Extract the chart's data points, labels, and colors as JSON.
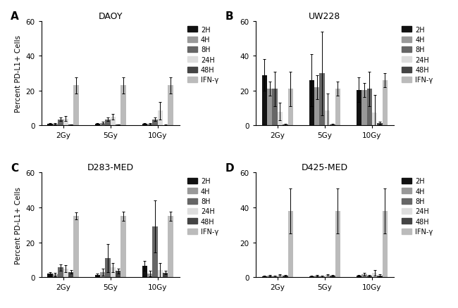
{
  "panels": [
    {
      "label": "A",
      "title": "DAOY",
      "groups": [
        "2Gy",
        "5Gy",
        "10Gy"
      ],
      "values": {
        "2H": [
          1.0,
          1.0,
          1.0
        ],
        "4H": [
          1.0,
          1.5,
          1.0
        ],
        "8H": [
          3.5,
          3.5,
          3.5
        ],
        "24H": [
          4.0,
          5.0,
          8.5
        ],
        "48H": [
          0.4,
          0.4,
          0.3
        ],
        "IFN-g": [
          23.0,
          23.0,
          23.0
        ]
      },
      "errors": {
        "2H": [
          0.5,
          0.5,
          0.5
        ],
        "4H": [
          0.5,
          0.5,
          0.5
        ],
        "8H": [
          1.0,
          1.0,
          1.0
        ],
        "24H": [
          1.5,
          1.5,
          5.0
        ],
        "48H": [
          0.2,
          0.2,
          0.2
        ],
        "IFN-g": [
          4.5,
          4.5,
          4.5
        ]
      },
      "ylim": [
        0,
        60
      ]
    },
    {
      "label": "B",
      "title": "UW228",
      "groups": [
        "2Gy",
        "5Gy",
        "10Gy"
      ],
      "values": {
        "2H": [
          29.0,
          26.0,
          20.5
        ],
        "4H": [
          21.0,
          22.0,
          20.5
        ],
        "8H": [
          21.0,
          30.0,
          21.0
        ],
        "24H": [
          8.0,
          8.5,
          7.5
        ],
        "48H": [
          0.5,
          0.5,
          1.5
        ],
        "IFN-g": [
          21.0,
          21.0,
          26.0
        ]
      },
      "errors": {
        "2H": [
          9.0,
          15.0,
          7.0
        ],
        "4H": [
          4.0,
          7.0,
          4.0
        ],
        "8H": [
          10.0,
          24.0,
          10.0
        ],
        "24H": [
          5.0,
          10.0,
          10.0
        ],
        "48H": [
          0.3,
          0.3,
          0.8
        ],
        "IFN-g": [
          10.0,
          4.0,
          4.0
        ]
      },
      "ylim": [
        0,
        60
      ]
    },
    {
      "label": "C",
      "title": "D283-MED",
      "groups": [
        "2Gy",
        "5Gy",
        "10Gy"
      ],
      "values": {
        "2H": [
          2.0,
          1.2,
          6.5
        ],
        "4H": [
          1.5,
          3.0,
          2.0
        ],
        "8H": [
          5.5,
          11.0,
          29.0
        ],
        "24H": [
          5.0,
          5.5,
          4.0
        ],
        "48H": [
          3.0,
          3.5,
          2.5
        ],
        "IFN-g": [
          35.0,
          35.0,
          35.0
        ]
      },
      "errors": {
        "2H": [
          1.0,
          0.8,
          3.0
        ],
        "4H": [
          1.0,
          2.0,
          1.5
        ],
        "8H": [
          2.0,
          8.0,
          15.0
        ],
        "24H": [
          2.0,
          2.5,
          4.0
        ],
        "48H": [
          1.0,
          1.5,
          1.0
        ],
        "IFN-g": [
          2.0,
          2.5,
          2.5
        ]
      },
      "ylim": [
        0,
        60
      ]
    },
    {
      "label": "D",
      "title": "D425-MED",
      "groups": [
        "2Gy",
        "5Gy",
        "10Gy"
      ],
      "values": {
        "2H": [
          0.5,
          0.5,
          0.8
        ],
        "4H": [
          0.8,
          0.8,
          1.5
        ],
        "8H": [
          0.5,
          0.5,
          0.8
        ],
        "24H": [
          1.2,
          1.2,
          2.5
        ],
        "48H": [
          0.8,
          0.8,
          1.0
        ],
        "IFN-g": [
          38.0,
          38.0,
          38.0
        ]
      },
      "errors": {
        "2H": [
          0.3,
          0.3,
          0.5
        ],
        "4H": [
          0.4,
          0.4,
          0.8
        ],
        "8H": [
          0.3,
          0.3,
          0.5
        ],
        "24H": [
          0.5,
          0.5,
          1.5
        ],
        "48H": [
          0.4,
          0.4,
          0.5
        ],
        "IFN-g": [
          13.0,
          13.0,
          13.0
        ]
      },
      "ylim": [
        0,
        60
      ]
    }
  ],
  "series_order": [
    "2H",
    "4H",
    "8H",
    "24H",
    "48H",
    "IFN-g"
  ],
  "colors": {
    "2H": "#111111",
    "4H": "#999999",
    "8H": "#666666",
    "24H": "#dddddd",
    "48H": "#444444",
    "IFN-g": "#bbbbbb"
  },
  "ylabel": "Percent PD-L1+ Cells",
  "yticks": [
    0,
    20,
    40,
    60
  ],
  "bar_width": 0.11,
  "background_color": "#ffffff",
  "legend_labels": [
    "2H",
    "4H",
    "8H",
    "24H",
    "48H",
    "IFN-γ"
  ]
}
